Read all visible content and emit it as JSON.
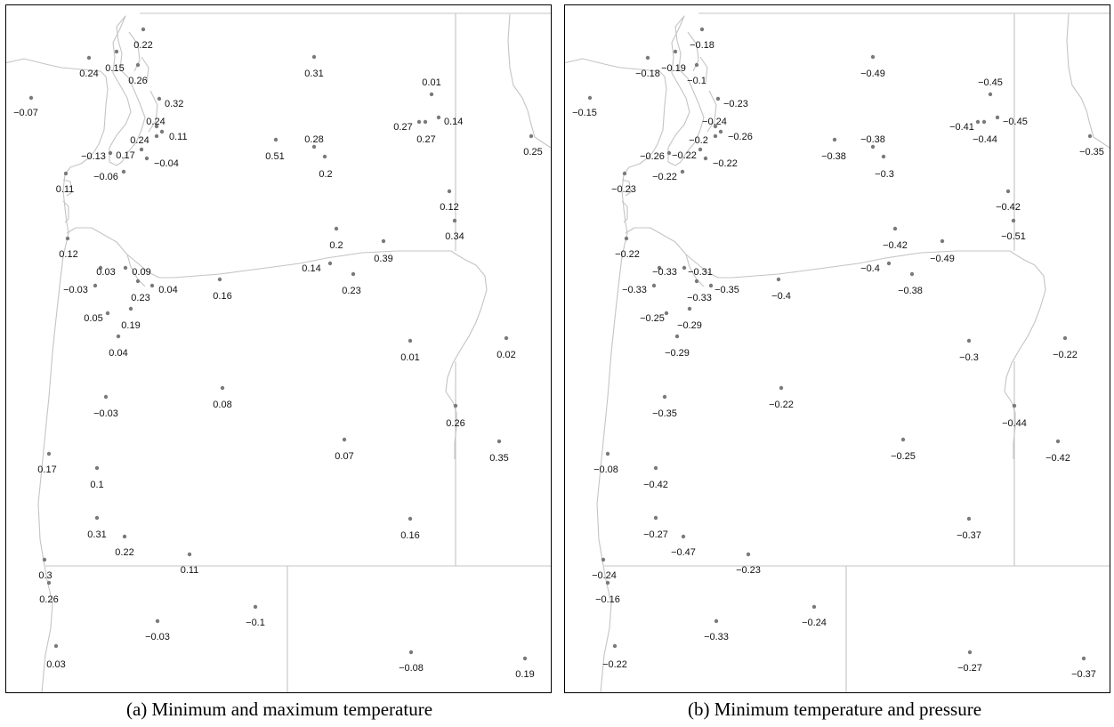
{
  "figure": {
    "panels": [
      {
        "id": "a",
        "caption": "(a)  Minimum and maximum temperature",
        "labels": [
          "0.22",
          "0.15",
          "0.26",
          "0.24",
          "0.32",
          "-0.07",
          "0.31",
          "0.01",
          "0.27",
          "0.27",
          "0.14",
          "0.25",
          "0.24",
          "0.11",
          "0.24",
          "-0.13",
          "0.17",
          "-0.04",
          "-0.06",
          "0.28",
          "0.51",
          "0.2",
          "0.11",
          "0.12",
          "0.34",
          "0.12",
          "0.2",
          "0.39",
          "0.03",
          "0.09",
          "0.14",
          "-0.03",
          "0.23",
          "0.04",
          "0.16",
          "0.23",
          "0.05",
          "0.19",
          "0.04",
          "0.01",
          "0.02",
          "-0.03",
          "0.08",
          "0.26",
          "0.17",
          "0.07",
          "0.35",
          "0.1",
          "0.31",
          "0.22",
          "0.16",
          "0.11",
          "0.3",
          "0.26",
          "-0.03",
          "-0.1",
          "0.03",
          "-0.08",
          "0.19"
        ]
      },
      {
        "id": "b",
        "caption": "(b)  Minimum temperature and pressure",
        "labels": [
          "-0.18",
          "-0.19",
          "-0.1",
          "-0.18",
          "-0.23",
          "-0.15",
          "-0.49",
          "-0.45",
          "-0.41",
          "-0.44",
          "-0.45",
          "-0.35",
          "-0.24",
          "-0.26",
          "-0.2",
          "-0.26",
          "-0.22",
          "-0.22",
          "-0.22",
          "-0.38",
          "-0.38",
          "-0.3",
          "-0.23",
          "-0.42",
          "-0.51",
          "-0.22",
          "-0.42",
          "-0.49",
          "-0.33",
          "-0.31",
          "-0.4",
          "-0.33",
          "-0.33",
          "-0.35",
          "-0.4",
          "-0.38",
          "-0.25",
          "-0.29",
          "-0.29",
          "-0.3",
          "-0.22",
          "-0.35",
          "-0.22",
          "-0.44",
          "-0.08",
          "-0.25",
          "-0.42",
          "-0.42",
          "-0.27",
          "-0.47",
          "-0.37",
          "-0.23",
          "-0.24",
          "-0.16",
          "-0.33",
          "-0.24",
          "-0.22",
          "-0.27",
          "-0.37"
        ]
      }
    ]
  }
}
